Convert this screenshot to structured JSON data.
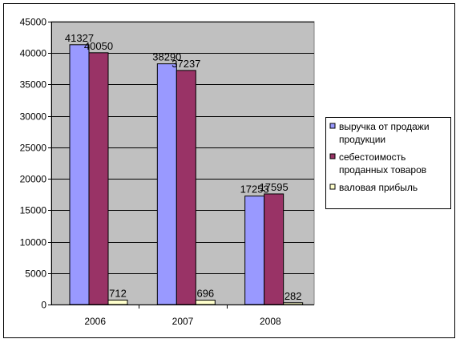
{
  "chart_data": {
    "type": "bar",
    "categories": [
      "2006",
      "2007",
      "2008"
    ],
    "series": [
      {
        "name": "выручка от продажи продукции",
        "values": [
          41327,
          38290,
          17253
        ],
        "labels": [
          "41327",
          "38290",
          "17253"
        ],
        "color": "#9999ff"
      },
      {
        "name": "себестоимость проданных товаров",
        "values": [
          40050,
          37237,
          17595
        ],
        "labels": [
          "40050",
          "37237",
          "17595"
        ],
        "color": "#993366"
      },
      {
        "name": "валовая прибыль",
        "values": [
          712,
          696,
          282
        ],
        "labels": [
          "712",
          "696",
          "282"
        ],
        "color": "#ffffcc"
      }
    ],
    "yticks": [
      "0",
      "5000",
      "10000",
      "15000",
      "20000",
      "25000",
      "30000",
      "35000",
      "40000",
      "45000"
    ],
    "ylim": [
      0,
      45000
    ],
    "grid": true,
    "legend_position": "right",
    "plot_background": "#c0c0c0"
  },
  "legend": {
    "entries": [
      [
        "выручка от продажи",
        "продукции"
      ],
      [
        "себестоимость",
        "проданных товаров"
      ],
      [
        "валовая прибыль"
      ]
    ]
  }
}
